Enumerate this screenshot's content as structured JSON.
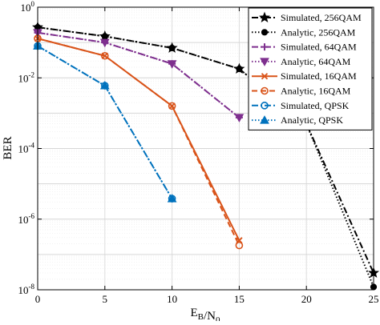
{
  "chart_data": {
    "type": "line",
    "title": "",
    "xlabel": "E_B/N_0",
    "ylabel": "BER",
    "xlim": [
      0,
      25
    ],
    "ylim_log10": [
      -8,
      0
    ],
    "yscale": "log",
    "grid": true,
    "legend_position": "top-right",
    "x_ticks": [
      0,
      5,
      10,
      15,
      20,
      25
    ],
    "x_tick_labels": [
      "0",
      "5",
      "10",
      "15",
      "20",
      "25"
    ],
    "y_ticks": [
      -8,
      -6,
      -4,
      -2,
      0
    ],
    "y_tick_labels": [
      {
        "base": "10",
        "exp": "-8"
      },
      {
        "base": "10",
        "exp": "-6"
      },
      {
        "base": "10",
        "exp": "-4"
      },
      {
        "base": "10",
        "exp": "-2"
      },
      {
        "base": "10",
        "exp": "0"
      }
    ],
    "series": [
      {
        "name": "Simulated, 256QAM",
        "color": "#000000",
        "dash": "dashdot",
        "marker": "star",
        "x": [
          0,
          5,
          10,
          15,
          20,
          25
        ],
        "y": [
          0.27,
          0.15,
          0.07,
          0.018,
          0.0005,
          3e-08
        ]
      },
      {
        "name": "Analytic, 256QAM",
        "color": "#000000",
        "dash": "dotted",
        "marker": "circle-filled",
        "x": [
          0,
          5,
          10,
          15,
          20,
          25
        ],
        "y": [
          0.27,
          0.15,
          0.07,
          0.018,
          0.0005,
          1.2e-08
        ]
      },
      {
        "name": "Simulated, 64QAM",
        "color": "#7e2f8e",
        "dash": "dashdot",
        "marker": "plus",
        "x": [
          0,
          5,
          10,
          15
        ],
        "y": [
          0.19,
          0.1,
          0.025,
          0.00075
        ]
      },
      {
        "name": "Analytic, 64QAM",
        "color": "#7e2f8e",
        "dash": "dotted",
        "marker": "triangle-down",
        "x": [
          0,
          5,
          10,
          15
        ],
        "y": [
          0.19,
          0.1,
          0.025,
          0.00075
        ]
      },
      {
        "name": "Simulated, 16QAM",
        "color": "#d95319",
        "dash": "solid",
        "marker": "x",
        "x": [
          0,
          5,
          10,
          15
        ],
        "y": [
          0.13,
          0.042,
          0.0016,
          2.5e-07
        ]
      },
      {
        "name": "Analytic, 16QAM",
        "color": "#d95319",
        "dash": "dashed",
        "marker": "circle",
        "x": [
          0,
          5,
          10,
          15
        ],
        "y": [
          0.13,
          0.042,
          0.0016,
          1.8e-07
        ]
      },
      {
        "name": "Simulated, QPSK",
        "color": "#0072bd",
        "dash": "dashdot",
        "marker": "circle",
        "x": [
          0,
          5,
          10
        ],
        "y": [
          0.08,
          0.006,
          3.8e-06
        ]
      },
      {
        "name": "Analytic, QPSK",
        "color": "#0072bd",
        "dash": "dotted",
        "marker": "triangle-up",
        "x": [
          0,
          5,
          10
        ],
        "y": [
          0.08,
          0.006,
          3.8e-06
        ]
      }
    ]
  }
}
